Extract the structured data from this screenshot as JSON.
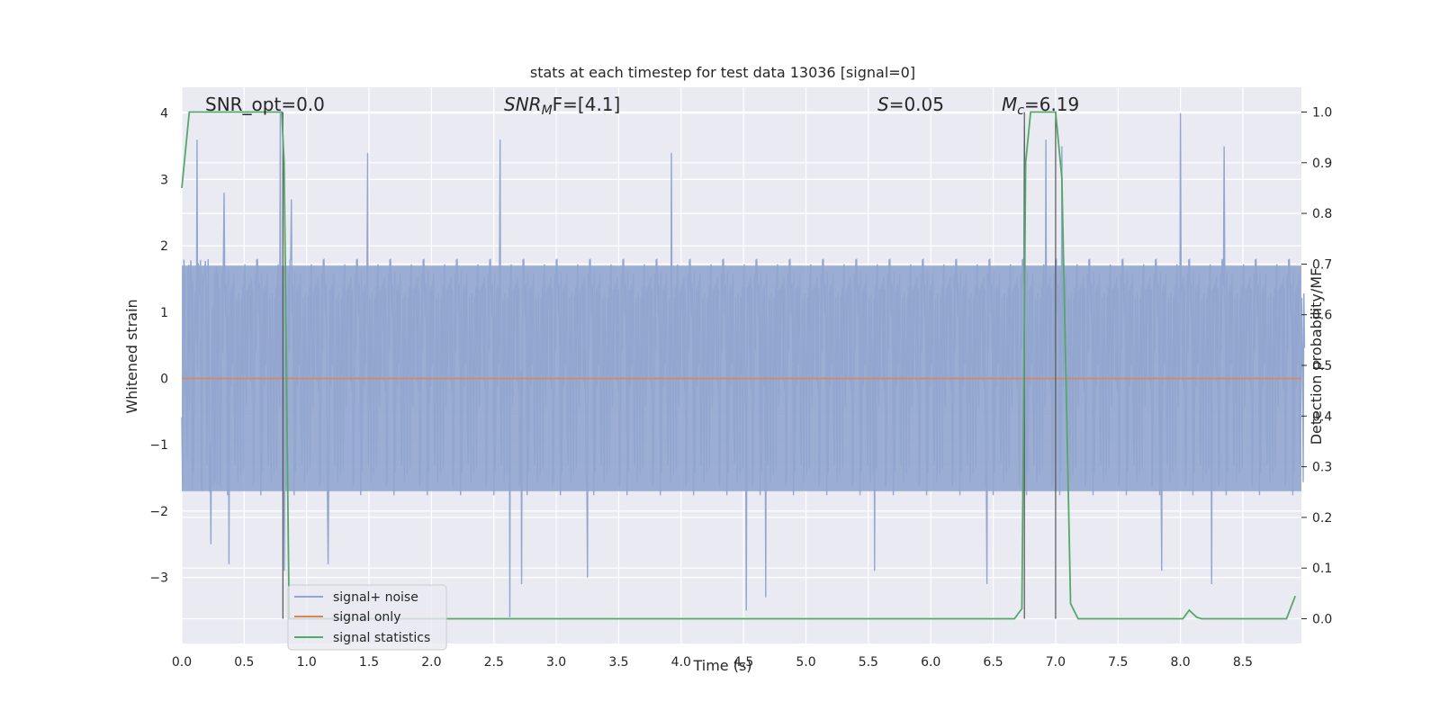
{
  "chart_data": {
    "type": "line",
    "title": "stats at each timestep for test data 13036 [signal=0]",
    "xlabel": "Time (s)",
    "ylabel": "Whitened strain",
    "ylabel_right": "Detection probability/MF",
    "xlim": [
      0.0,
      9.0
    ],
    "ylim": [
      -3.95,
      4.38
    ],
    "ylim_right": [
      -0.047,
      1.047
    ],
    "x_ticks": [
      "0.0",
      "0.5",
      "1.0",
      "1.5",
      "2.0",
      "2.5",
      "3.0",
      "3.5",
      "4.0",
      "4.5",
      "5.0",
      "5.5",
      "6.0",
      "6.5",
      "7.0",
      "7.5",
      "8.0",
      "8.5"
    ],
    "y_ticks": [
      "4",
      "3",
      "2",
      "1",
      "0",
      "−1",
      "−2",
      "−3"
    ],
    "y_tick_values": [
      4,
      3,
      2,
      1,
      0,
      -1,
      -2,
      -3
    ],
    "y_right_ticks": [
      "1.0",
      "0.9",
      "0.8",
      "0.7",
      "0.6",
      "0.5",
      "0.4",
      "0.3",
      "0.2",
      "0.1",
      "0.0"
    ],
    "y_right_tick_values": [
      1.0,
      0.9,
      0.8,
      0.7,
      0.6,
      0.5,
      0.4,
      0.3,
      0.2,
      0.1,
      0.0
    ],
    "grid": true,
    "legend_position": "lower-left",
    "annotations": {
      "snr_opt": "SNR_opt=0.0",
      "snr_mf_base": "SNR",
      "snr_mf_sub": "M",
      "snr_mf_rest": "F=[4.1]",
      "s_stat_italic": "S",
      "s_stat_value": "=0.05",
      "mc_base": "M",
      "mc_sub": "c",
      "mc_value": "=6.19"
    },
    "series": [
      {
        "name": "signal+ noise",
        "color": "#92a6cf",
        "axis": "left",
        "description_values": {
          "samples_per_second": 180,
          "core_amplitude": 1.7,
          "max_peak": 4.0,
          "min_peak": -3.6,
          "peak_samples": [
            [
              0.12,
              3.6
            ],
            [
              0.34,
              2.8
            ],
            [
              0.79,
              4.0
            ],
            [
              0.88,
              2.7
            ],
            [
              1.49,
              3.4
            ],
            [
              2.55,
              3.6
            ],
            [
              3.92,
              3.4
            ],
            [
              6.75,
              3.8
            ],
            [
              6.92,
              3.6
            ],
            [
              7.05,
              3.5
            ],
            [
              8.0,
              4.0
            ],
            [
              8.35,
              3.5
            ],
            [
              2.63,
              -3.6
            ],
            [
              2.72,
              -3.1
            ],
            [
              3.25,
              -3.0
            ],
            [
              4.52,
              -3.5
            ],
            [
              4.68,
              -3.3
            ],
            [
              6.45,
              -3.1
            ],
            [
              8.25,
              -3.1
            ],
            [
              1.17,
              -2.8
            ],
            [
              5.55,
              -2.9
            ],
            [
              7.85,
              -2.9
            ],
            [
              0.38,
              -2.8
            ],
            [
              0.82,
              -2.9
            ]
          ]
        }
      },
      {
        "name": "signal only",
        "color": "#dd8452",
        "axis": "left",
        "x": [
          0.0,
          9.0
        ],
        "y": [
          0.0,
          0.0
        ]
      },
      {
        "name": "signal statistics",
        "color": "#55a868",
        "axis": "right",
        "x": [
          0.0,
          0.06,
          0.1,
          0.8,
          0.82,
          0.86,
          2.7,
          6.67,
          6.73,
          6.76,
          6.8,
          6.97,
          7.0,
          7.05,
          7.12,
          7.18,
          7.95,
          8.02,
          8.07,
          8.13,
          8.17,
          8.85,
          8.92
        ],
        "y": [
          0.85,
          1.0,
          1.0,
          1.0,
          0.9,
          0.0,
          0.0,
          0.0,
          0.02,
          0.9,
          1.0,
          1.0,
          1.0,
          0.87,
          0.03,
          0.0,
          0.0,
          0.0,
          0.017,
          0.003,
          0.0,
          0.0,
          0.045
        ]
      }
    ],
    "vertical_lines": [
      0.81,
      6.75,
      7.0
    ]
  }
}
